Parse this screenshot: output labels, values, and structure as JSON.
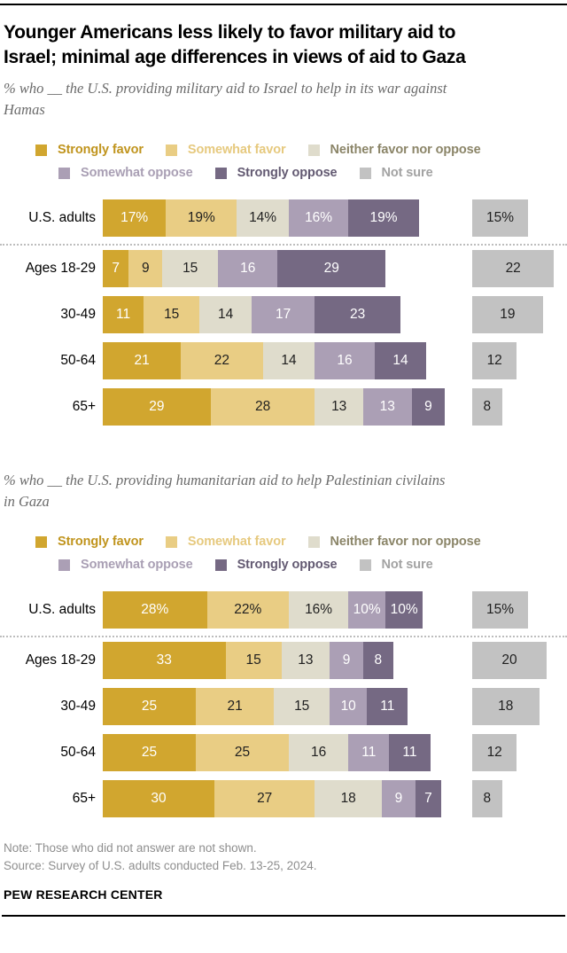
{
  "page": {
    "title": "Younger Americans less likely to favor military aid to\nIsrael; minimal age differences in views of aid to Gaza",
    "note": "Note: Those who did not answer are not shown.",
    "source": "Source: Survey of U.S. adults conducted Feb. 13-25, 2024.",
    "brand": "PEW RESEARCH CENTER"
  },
  "chart_data": [
    {
      "type": "bar",
      "stacked": true,
      "orientation": "horizontal",
      "subtitle": "% who __ the U.S. providing military aid to Israel to help in its war against\nHamas",
      "unit": "percent",
      "xlim": [
        0,
        100
      ],
      "grid": false,
      "legend_position": "top",
      "percent_suffix_row": 0,
      "categories": [
        "U.S. adults",
        "Ages 18-29",
        "30-49",
        "50-64",
        "65+"
      ],
      "series": [
        {
          "name": "Strongly favor",
          "color": "#d1a62f",
          "legend_text_color": "#c0941d",
          "value_text_color": "#ffffff",
          "values": [
            17,
            7,
            11,
            21,
            29
          ]
        },
        {
          "name": "Somewhat favor",
          "color": "#e9cd84",
          "legend_text_color": "#e6c97e",
          "value_text_color": "#1f1f1f",
          "values": [
            19,
            9,
            15,
            22,
            28
          ]
        },
        {
          "name": "Neither favor nor oppose",
          "color": "#dfdccc",
          "legend_text_color": "#8b8568",
          "value_text_color": "#1f1f1f",
          "values": [
            14,
            15,
            14,
            14,
            13
          ]
        },
        {
          "name": "Somewhat oppose",
          "color": "#ab9fb5",
          "legend_text_color": "#a99fb4",
          "value_text_color": "#ffffff",
          "values": [
            16,
            16,
            17,
            16,
            13
          ]
        },
        {
          "name": "Strongly oppose",
          "color": "#756983",
          "legend_text_color": "#635a72",
          "value_text_color": "#ffffff",
          "values": [
            19,
            29,
            23,
            14,
            9
          ]
        },
        {
          "name": "Not sure",
          "color": "#c2c2c2",
          "legend_text_color": "#a2a2a2",
          "value_text_color": "#1f1f1f",
          "detached": true,
          "values": [
            15,
            22,
            19,
            12,
            8
          ]
        }
      ]
    },
    {
      "type": "bar",
      "stacked": true,
      "orientation": "horizontal",
      "subtitle": "% who __ the U.S. providing humanitarian aid to help Palestinian civilains\nin Gaza",
      "unit": "percent",
      "xlim": [
        0,
        100
      ],
      "grid": false,
      "legend_position": "top",
      "percent_suffix_row": 0,
      "categories": [
        "U.S. adults",
        "Ages 18-29",
        "30-49",
        "50-64",
        "65+"
      ],
      "series": [
        {
          "name": "Strongly favor",
          "color": "#d1a62f",
          "legend_text_color": "#c0941d",
          "value_text_color": "#ffffff",
          "values": [
            28,
            33,
            25,
            25,
            30
          ]
        },
        {
          "name": "Somewhat favor",
          "color": "#e9cd84",
          "legend_text_color": "#e6c97e",
          "value_text_color": "#1f1f1f",
          "values": [
            22,
            15,
            21,
            25,
            27
          ]
        },
        {
          "name": "Neither favor nor oppose",
          "color": "#dfdccc",
          "legend_text_color": "#8b8568",
          "value_text_color": "#1f1f1f",
          "values": [
            16,
            13,
            15,
            16,
            18
          ]
        },
        {
          "name": "Somewhat oppose",
          "color": "#ab9fb5",
          "legend_text_color": "#a99fb4",
          "value_text_color": "#ffffff",
          "values": [
            10,
            9,
            10,
            11,
            9
          ]
        },
        {
          "name": "Strongly oppose",
          "color": "#756983",
          "legend_text_color": "#635a72",
          "value_text_color": "#ffffff",
          "values": [
            10,
            8,
            11,
            11,
            7
          ]
        },
        {
          "name": "Not sure",
          "color": "#c2c2c2",
          "legend_text_color": "#a2a2a2",
          "value_text_color": "#1f1f1f",
          "detached": true,
          "values": [
            15,
            20,
            18,
            12,
            8
          ]
        }
      ]
    }
  ]
}
